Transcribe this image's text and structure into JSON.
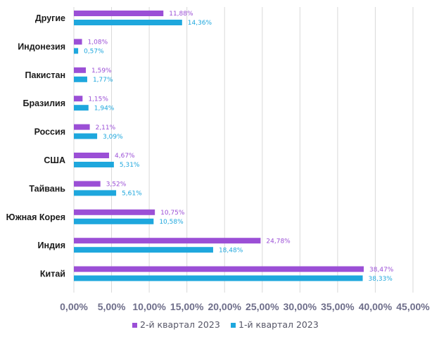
{
  "chart_data": {
    "type": "bar",
    "orientation": "horizontal",
    "categories": [
      "Другие",
      "Индонезия",
      "Пакистан",
      "Бразилия",
      "Россия",
      "США",
      "Тайвань",
      "Южная Корея",
      "Индия",
      "Китай"
    ],
    "series": [
      {
        "name": "2-й квартал 2023",
        "color": "#9b4fd6",
        "values": [
          11.88,
          1.08,
          1.59,
          1.15,
          2.11,
          4.67,
          3.52,
          10.75,
          24.78,
          38.47
        ],
        "labels": [
          "11,88%",
          "1,08%",
          "1,59%",
          "1,15%",
          "2,11%",
          "4,67%",
          "3,52%",
          "10,75%",
          "24,78%",
          "38,47%"
        ]
      },
      {
        "name": "1-й квартал 2023",
        "color": "#1ea7dd",
        "values": [
          14.36,
          0.57,
          1.77,
          1.94,
          3.09,
          5.31,
          5.61,
          10.58,
          18.48,
          38.33
        ],
        "labels": [
          "14,36%",
          "0,57%",
          "1,77%",
          "1,94%",
          "3,09%",
          "5,31%",
          "5,61%",
          "10,58%",
          "18,48%",
          "38,33%"
        ]
      }
    ],
    "x_ticks": [
      "0,00%",
      "5,00%",
      "10,00%",
      "15,00%",
      "20,00%",
      "25,00%",
      "30,00%",
      "35,00%",
      "40,00%",
      "45,00%"
    ],
    "xlim": [
      0,
      45
    ],
    "grid": "vertical",
    "legend": "bottom-center"
  }
}
